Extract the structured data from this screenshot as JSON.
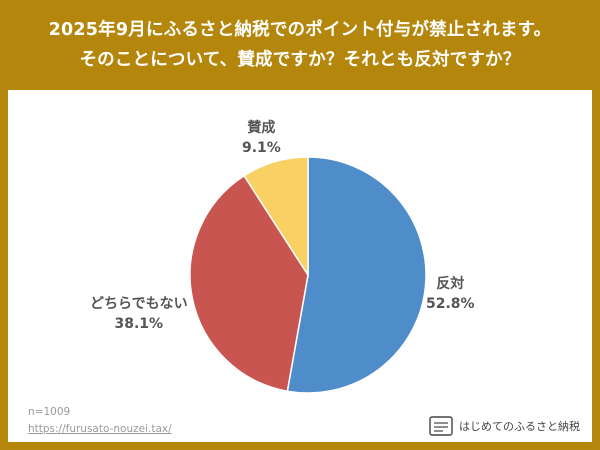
{
  "title": {
    "line1": "2025年9月にふるさと納税でのポイント付与が禁止されます。",
    "line2": "そのことについて、賛成ですか？それとも反対ですか？"
  },
  "chart_data": {
    "type": "pie",
    "slices": [
      {
        "label": "反対",
        "value": 52.8,
        "value_text": "52.8%",
        "color": "#4f8cca"
      },
      {
        "label": "どちらでもない",
        "value": 38.1,
        "value_text": "38.1%",
        "color": "#c95551"
      },
      {
        "label": "賛成",
        "value": 9.1,
        "value_text": "9.1%",
        "color": "#f9d163"
      }
    ],
    "start": "12 o'clock",
    "direction": "clockwise"
  },
  "footer": {
    "sample_size": "n=1009",
    "url": "https://furusato-nouzei.tax/",
    "brand_name": "はじめてのふるさと納税"
  },
  "colors": {
    "background": "#b4860c",
    "panel": "#ffffff"
  }
}
